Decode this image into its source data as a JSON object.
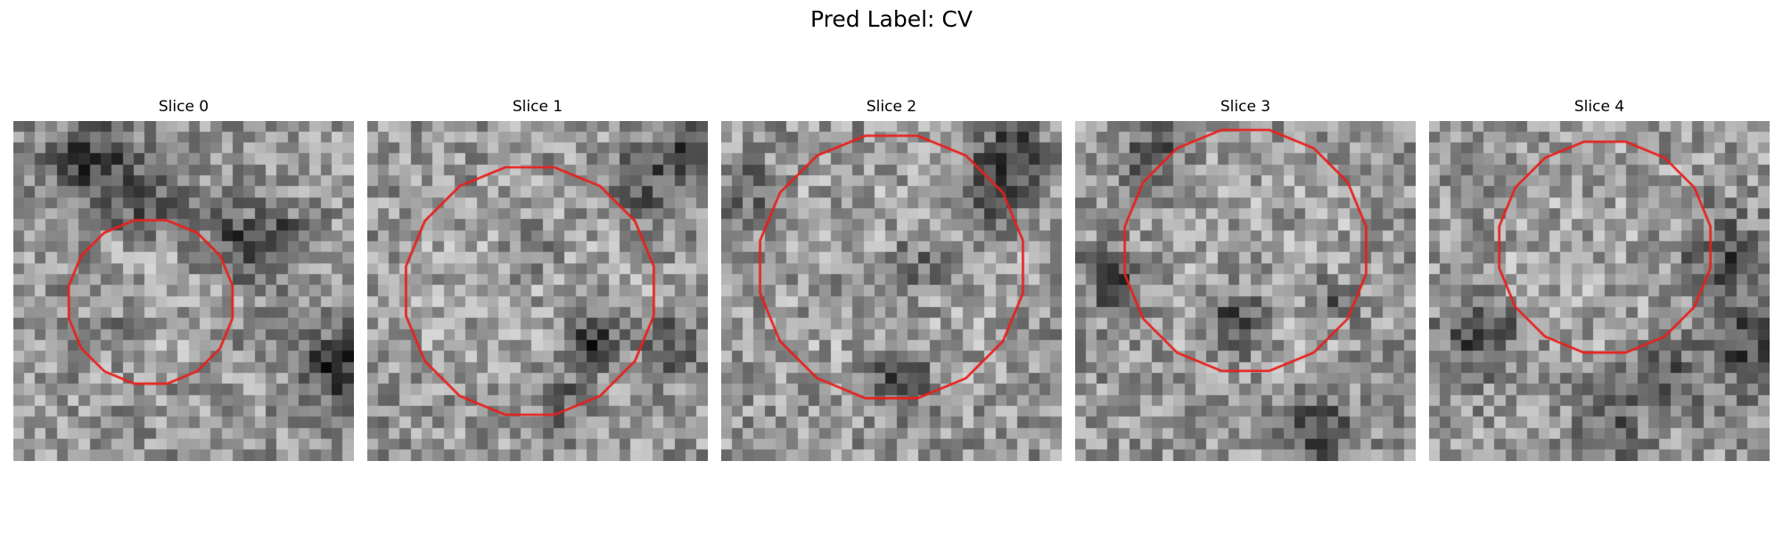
{
  "figure": {
    "title": "Pred Label: CV"
  },
  "contour_color": "#e8201c",
  "panels": [
    {
      "title": "Slice 0"
    },
    {
      "title": "Slice 1"
    },
    {
      "title": "Slice 2"
    },
    {
      "title": "Slice 3"
    },
    {
      "title": "Slice 4"
    }
  ]
}
